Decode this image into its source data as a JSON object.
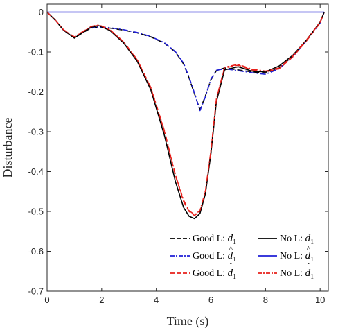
{
  "chart_data": {
    "type": "line",
    "title": "",
    "xlabel": "Time (s)",
    "ylabel": "Disturbance",
    "xlim": [
      0,
      10.3
    ],
    "ylim": [
      -0.7,
      0.02
    ],
    "xticks": [
      0,
      2,
      4,
      6,
      8,
      10
    ],
    "yticks": [
      0,
      -0.1,
      -0.2,
      -0.3,
      -0.4,
      -0.5,
      -0.6,
      -0.7
    ],
    "xtick_labels": [
      "0",
      "2",
      "4",
      "6",
      "8",
      "10"
    ],
    "ytick_labels": [
      "0",
      "-0.1",
      "-0.2",
      "-0.3",
      "-0.4",
      "-0.5",
      "-0.6",
      "-0.7"
    ],
    "grid": false,
    "legend_position": "bottom-right",
    "legend": [
      {
        "prefix": "Good L: ",
        "symbol": "d",
        "accent": "",
        "subscript": "1"
      },
      {
        "prefix": "No L: ",
        "symbol": "d",
        "accent": "",
        "subscript": "1"
      },
      {
        "prefix": "Good L: ",
        "symbol": "d",
        "accent": "^",
        "subscript": "1"
      },
      {
        "prefix": "No L: ",
        "symbol": "d",
        "accent": "^",
        "subscript": "1"
      },
      {
        "prefix": "Good L: ",
        "symbol": "d",
        "accent": "ˇ",
        "subscript": "1"
      },
      {
        "prefix": "No L: ",
        "symbol": "d",
        "accent": "ˇ",
        "subscript": "1"
      }
    ],
    "series": [
      {
        "name": "Good L: d1",
        "color": "#000000",
        "dash": "dashed",
        "x": [
          0,
          0.3,
          0.6,
          1.0,
          1.3,
          1.6,
          1.9,
          2.3,
          2.8,
          3.3,
          3.8,
          4.3,
          4.7,
          5.0,
          5.2,
          5.4,
          5.6,
          5.8,
          6.0,
          6.2,
          6.5,
          7.0,
          7.5,
          8.0,
          8.5,
          9.0,
          9.5,
          10.0,
          10.15
        ],
        "y": [
          0,
          -0.02,
          -0.045,
          -0.065,
          -0.052,
          -0.04,
          -0.038,
          -0.04,
          -0.045,
          -0.052,
          -0.062,
          -0.078,
          -0.1,
          -0.13,
          -0.165,
          -0.205,
          -0.245,
          -0.21,
          -0.17,
          -0.147,
          -0.14,
          -0.145,
          -0.15,
          -0.153,
          -0.14,
          -0.11,
          -0.07,
          -0.025,
          0
        ]
      },
      {
        "name": "Good L: d1 hat",
        "color": "#1f1fd6",
        "dash": "dashdot",
        "x": [
          0,
          0.3,
          0.6,
          1.0,
          1.3,
          1.6,
          1.9,
          2.3,
          2.8,
          3.3,
          3.8,
          4.3,
          4.7,
          5.0,
          5.2,
          5.4,
          5.6,
          5.8,
          6.0,
          6.2,
          6.5,
          7.0,
          7.5,
          8.0,
          8.5,
          9.0,
          9.5,
          10.0,
          10.15
        ],
        "y": [
          0,
          -0.02,
          -0.045,
          -0.064,
          -0.05,
          -0.039,
          -0.037,
          -0.039,
          -0.044,
          -0.051,
          -0.061,
          -0.077,
          -0.099,
          -0.128,
          -0.163,
          -0.203,
          -0.247,
          -0.212,
          -0.168,
          -0.146,
          -0.142,
          -0.147,
          -0.152,
          -0.156,
          -0.142,
          -0.112,
          -0.072,
          -0.027,
          0
        ]
      },
      {
        "name": "Good L: d1 check",
        "color": "#e8201b",
        "dash": "dashed",
        "x": [
          0,
          0.3,
          0.6,
          1.0,
          1.3,
          1.6,
          1.9,
          2.3,
          2.8,
          3.3,
          3.8,
          4.3,
          4.7,
          5.0,
          5.2,
          5.4,
          5.6,
          5.8,
          6.0,
          6.2,
          6.5,
          7.0,
          7.5,
          8.0,
          8.5,
          9.0,
          9.5,
          10.0,
          10.15
        ],
        "y": [
          0,
          -0.02,
          -0.044,
          -0.063,
          -0.05,
          -0.037,
          -0.033,
          -0.045,
          -0.075,
          -0.12,
          -0.19,
          -0.3,
          -0.41,
          -0.475,
          -0.5,
          -0.51,
          -0.5,
          -0.45,
          -0.35,
          -0.22,
          -0.14,
          -0.133,
          -0.145,
          -0.15,
          -0.142,
          -0.112,
          -0.072,
          -0.027,
          0
        ]
      },
      {
        "name": "No L: d1",
        "color": "#000000",
        "dash": "solid",
        "x": [
          0,
          0.3,
          0.6,
          1.0,
          1.3,
          1.6,
          1.9,
          2.3,
          2.8,
          3.3,
          3.8,
          4.3,
          4.7,
          5.0,
          5.2,
          5.4,
          5.6,
          5.8,
          6.0,
          6.2,
          6.5,
          7.0,
          7.5,
          8.0,
          8.5,
          9.0,
          9.5,
          10.0,
          10.15
        ],
        "y": [
          0,
          -0.02,
          -0.045,
          -0.065,
          -0.051,
          -0.038,
          -0.034,
          -0.046,
          -0.077,
          -0.123,
          -0.195,
          -0.31,
          -0.425,
          -0.49,
          -0.512,
          -0.518,
          -0.505,
          -0.455,
          -0.355,
          -0.225,
          -0.145,
          -0.137,
          -0.148,
          -0.15,
          -0.135,
          -0.108,
          -0.07,
          -0.025,
          0
        ]
      },
      {
        "name": "No L: d1 hat",
        "color": "#1f1fd6",
        "dash": "solid",
        "x": [
          0,
          10.15
        ],
        "y": [
          0,
          0
        ]
      },
      {
        "name": "No L: d1 check",
        "color": "#e8201b",
        "dash": "dashdot",
        "x": [
          0,
          0.3,
          0.6,
          1.0,
          1.3,
          1.6,
          1.9,
          2.3,
          2.8,
          3.3,
          3.8,
          4.3,
          4.7,
          5.0,
          5.2,
          5.4,
          5.6,
          5.8,
          6.0,
          6.2,
          6.5,
          7.0,
          7.5,
          8.0,
          8.5,
          9.0,
          9.5,
          10.0,
          10.15
        ],
        "y": [
          0,
          -0.02,
          -0.044,
          -0.062,
          -0.049,
          -0.036,
          -0.032,
          -0.044,
          -0.074,
          -0.119,
          -0.189,
          -0.298,
          -0.408,
          -0.472,
          -0.498,
          -0.508,
          -0.498,
          -0.448,
          -0.348,
          -0.218,
          -0.138,
          -0.131,
          -0.143,
          -0.148,
          -0.14,
          -0.11,
          -0.07,
          -0.025,
          0
        ]
      }
    ]
  }
}
